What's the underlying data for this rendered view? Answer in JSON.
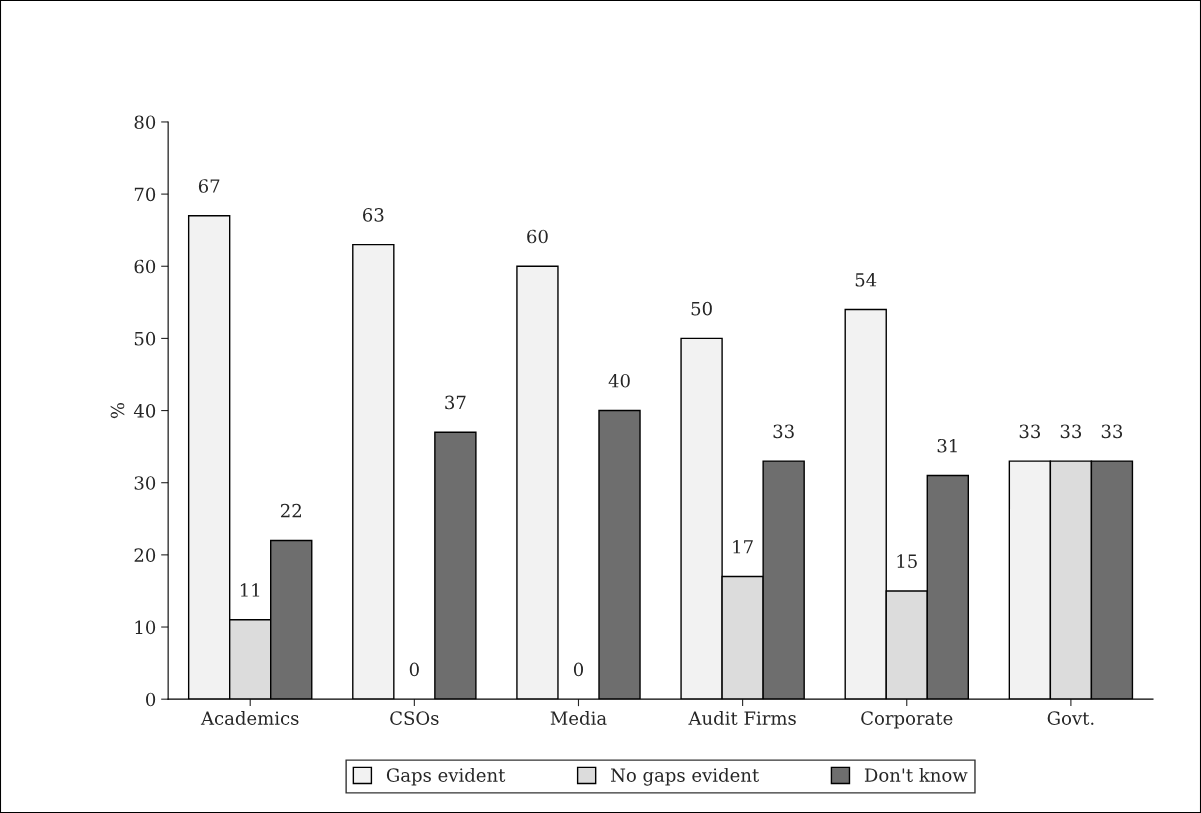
{
  "chart_data": {
    "type": "bar",
    "ylabel": "%",
    "categories": [
      "Academics",
      "CSOs",
      "Media",
      "Audit Firms",
      "Corporate",
      "Govt."
    ],
    "series": [
      {
        "name": "Gaps evident",
        "color": "#f2f2f2",
        "values": [
          67,
          63,
          60,
          50,
          54,
          33
        ]
      },
      {
        "name": "No gaps evident",
        "color": "#dcdcdc",
        "values": [
          11,
          0,
          0,
          17,
          15,
          33
        ]
      },
      {
        "name": "Don't know",
        "color": "#6e6e6e",
        "values": [
          22,
          37,
          40,
          33,
          31,
          33
        ]
      }
    ],
    "ylim": [
      0,
      80
    ],
    "yticks": [
      0,
      10,
      20,
      30,
      40,
      50,
      60,
      70,
      80
    ],
    "data_labels": true,
    "grid": false,
    "legend": "bottom"
  }
}
